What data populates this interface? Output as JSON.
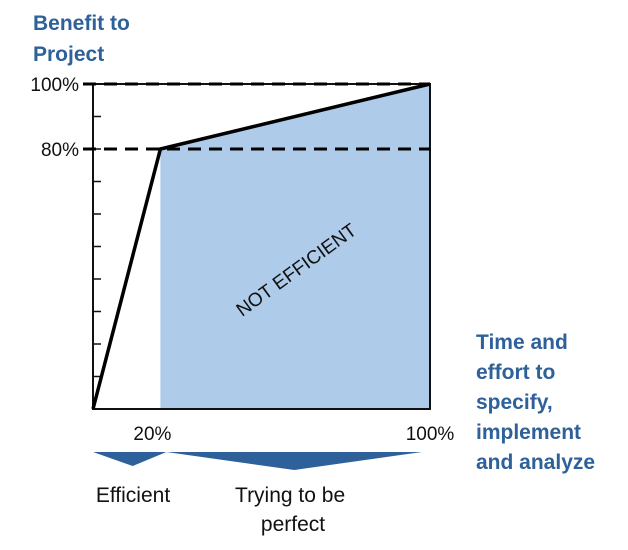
{
  "chart_data": {
    "type": "line",
    "ylabel_lines": [
      "Benefit to",
      "Project"
    ],
    "xlabel_lines": [
      "Time and",
      "effort to",
      "specify,",
      "implement",
      "and analyze"
    ],
    "x_ticks": [
      {
        "value": 20,
        "label": "20%"
      },
      {
        "value": 100,
        "label": "100%"
      }
    ],
    "y_ticks": [
      {
        "value": 80,
        "label": "80%"
      },
      {
        "value": 100,
        "label": "100%"
      }
    ],
    "xlim": [
      0,
      100
    ],
    "ylim": [
      0,
      100
    ],
    "series": [
      {
        "x": [
          0,
          20,
          100
        ],
        "y": [
          0,
          80,
          100
        ]
      }
    ],
    "reference_lines": [
      80,
      100
    ],
    "shaded_region": {
      "label": "NOT EFFICIENT",
      "x_from": 20,
      "x_to": 100
    },
    "annotations": [
      {
        "label_lines": [
          "Efficient"
        ],
        "x_from": 0,
        "x_to": 20
      },
      {
        "label_lines": [
          "Trying to be",
          "perfect"
        ],
        "x_from": 20,
        "x_to": 100
      }
    ],
    "colors": {
      "shade": "#AFCBEA",
      "axis_label": "#2E6099",
      "brace": "#2E6099",
      "line": "#000000"
    }
  }
}
